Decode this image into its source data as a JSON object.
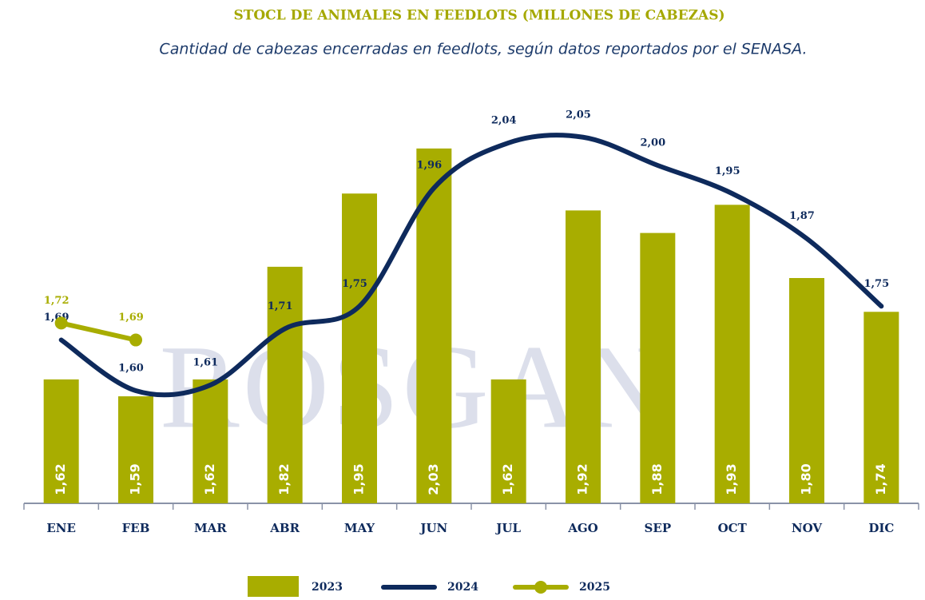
{
  "chart_data": {
    "type": "bar",
    "title": "STOCL DE ANIMALES EN FEEDLOTS (MILLONES DE CABEZAS)",
    "subtitle": "Cantidad de cabezas encerradas en feedlots, según datos reportados por el SENASA.",
    "watermark": "ROSGAN",
    "categories": [
      "ENE",
      "FEB",
      "MAR",
      "ABR",
      "MAY",
      "JUN",
      "JUL",
      "AGO",
      "SEP",
      "OCT",
      "NOV",
      "DIC"
    ],
    "series": [
      {
        "name": "2023",
        "type": "bar",
        "color": "#a8ad00",
        "values": [
          1.62,
          1.59,
          1.62,
          1.82,
          1.95,
          2.03,
          1.62,
          1.92,
          1.88,
          1.93,
          1.8,
          1.74
        ],
        "value_labels": [
          "1,62",
          "1,59",
          "1,62",
          "1,82",
          "1,95",
          "2,03",
          "1,62",
          "1,92",
          "1,88",
          "1,93",
          "1,80",
          "1,74"
        ]
      },
      {
        "name": "2024",
        "type": "line",
        "color": "#0e2a5c",
        "values": [
          1.69,
          1.6,
          1.61,
          1.71,
          1.75,
          1.96,
          2.04,
          2.05,
          2.0,
          1.95,
          1.87,
          1.75
        ],
        "value_labels": [
          "1,69",
          "1,60",
          "1,61",
          "1,71",
          "1,75",
          "1,96",
          "2,04",
          "2,05",
          "2,00",
          "1,95",
          "1,87",
          "1,75"
        ]
      },
      {
        "name": "2025",
        "type": "line",
        "markers": true,
        "color": "#a8ad00",
        "values": [
          1.72,
          1.69,
          null,
          null,
          null,
          null,
          null,
          null,
          null,
          null,
          null,
          null
        ],
        "value_labels": [
          "1,72",
          "1,69",
          null,
          null,
          null,
          null,
          null,
          null,
          null,
          null,
          null,
          null
        ]
      }
    ]
  }
}
